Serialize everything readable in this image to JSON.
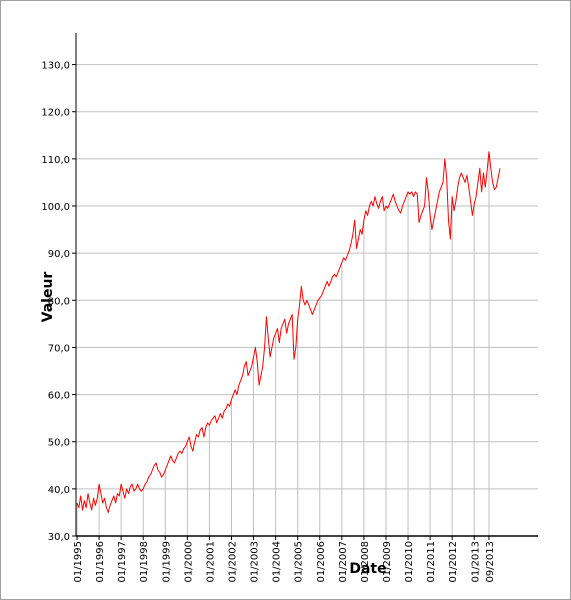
{
  "chart_data": {
    "type": "line",
    "title": "",
    "xlabel": "Date",
    "ylabel": "Valeur",
    "ylim": [
      30,
      135
    ],
    "yticks": [
      "30,0",
      "40,0",
      "50,0",
      "60,0",
      "70,0",
      "80,0",
      "90,0",
      "100,0",
      "110,0",
      "120,0",
      "130,0"
    ],
    "xticks": [
      "01/1995",
      "01/1996",
      "01/1997",
      "01/1998",
      "01/1999",
      "01/2000",
      "01/2001",
      "01/2002",
      "01/2003",
      "01/2004",
      "01/2005",
      "01/2006",
      "01/2007",
      "01/2008",
      "01/2009",
      "01/2010",
      "01/2011",
      "01/2012",
      "01/2013",
      "09/2013"
    ],
    "grid": true,
    "colors": {
      "line": "#ff0000",
      "grid": "#c0c0c0",
      "axis": "#000000"
    },
    "series": [
      {
        "x_start": "01/1995",
        "x_end": "09/2013",
        "frequency": "monthly",
        "values": [
          37.0,
          36.0,
          38.5,
          35.5,
          37.5,
          36.0,
          39.0,
          37.0,
          35.5,
          38.0,
          36.5,
          38.0,
          41.0,
          39.0,
          37.0,
          38.0,
          36.0,
          35.0,
          36.5,
          37.5,
          38.5,
          37.0,
          39.0,
          38.5,
          41.0,
          39.5,
          38.0,
          40.0,
          39.0,
          40.5,
          41.0,
          39.5,
          40.0,
          41.0,
          40.0,
          39.5,
          40.0,
          41.0,
          41.5,
          42.5,
          43.0,
          44.0,
          45.0,
          45.5,
          44.0,
          43.5,
          42.5,
          43.0,
          44.0,
          45.0,
          46.0,
          47.0,
          46.0,
          45.5,
          46.5,
          47.5,
          48.0,
          47.5,
          48.5,
          49.0,
          50.0,
          51.0,
          49.0,
          48.0,
          50.0,
          51.5,
          51.0,
          52.5,
          53.0,
          51.0,
          53.0,
          54.0,
          53.5,
          54.5,
          55.0,
          55.5,
          54.0,
          55.0,
          56.0,
          55.0,
          56.5,
          57.0,
          58.0,
          57.5,
          59.0,
          60.0,
          61.0,
          60.0,
          62.0,
          63.0,
          64.0,
          66.0,
          67.0,
          64.0,
          65.0,
          66.0,
          68.0,
          70.0,
          67.0,
          62.0,
          64.0,
          66.0,
          70.0,
          76.5,
          72.0,
          68.0,
          70.0,
          72.0,
          73.0,
          74.0,
          71.0,
          74.0,
          75.0,
          76.0,
          73.0,
          75.0,
          76.0,
          77.0,
          67.5,
          70.0,
          76.0,
          79.0,
          83.0,
          80.0,
          79.0,
          80.0,
          79.0,
          78.0,
          77.0,
          78.0,
          79.0,
          80.0,
          80.5,
          81.0,
          82.0,
          83.0,
          84.0,
          83.0,
          84.0,
          85.0,
          85.5,
          85.0,
          86.0,
          87.0,
          88.0,
          89.0,
          88.5,
          89.5,
          90.5,
          92.0,
          94.0,
          97.0,
          91.0,
          93.0,
          95.0,
          94.0,
          97.0,
          99.0,
          98.0,
          100.0,
          101.0,
          100.0,
          102.0,
          100.5,
          99.5,
          101.0,
          102.0,
          99.0,
          100.0,
          99.5,
          100.5,
          101.5,
          102.5,
          101.0,
          100.0,
          99.0,
          98.5,
          100.0,
          101.0,
          102.0,
          103.0,
          102.5,
          103.0,
          102.0,
          103.0,
          102.5,
          96.5,
          98.0,
          99.0,
          100.0,
          106.0,
          103.0,
          98.0,
          95.0,
          97.0,
          99.0,
          101.0,
          103.0,
          104.0,
          105.0,
          110.0,
          106.0,
          97.0,
          93.0,
          102.0,
          99.0,
          101.0,
          104.0,
          106.0,
          107.0,
          106.0,
          105.0,
          106.5,
          104.0,
          101.0,
          98.0,
          100.5,
          102.0,
          105.0,
          108.0,
          103.0,
          107.0,
          104.0,
          107.5,
          111.5,
          108.0,
          105.0,
          103.5,
          104.0,
          106.0,
          108.0
        ]
      }
    ]
  }
}
